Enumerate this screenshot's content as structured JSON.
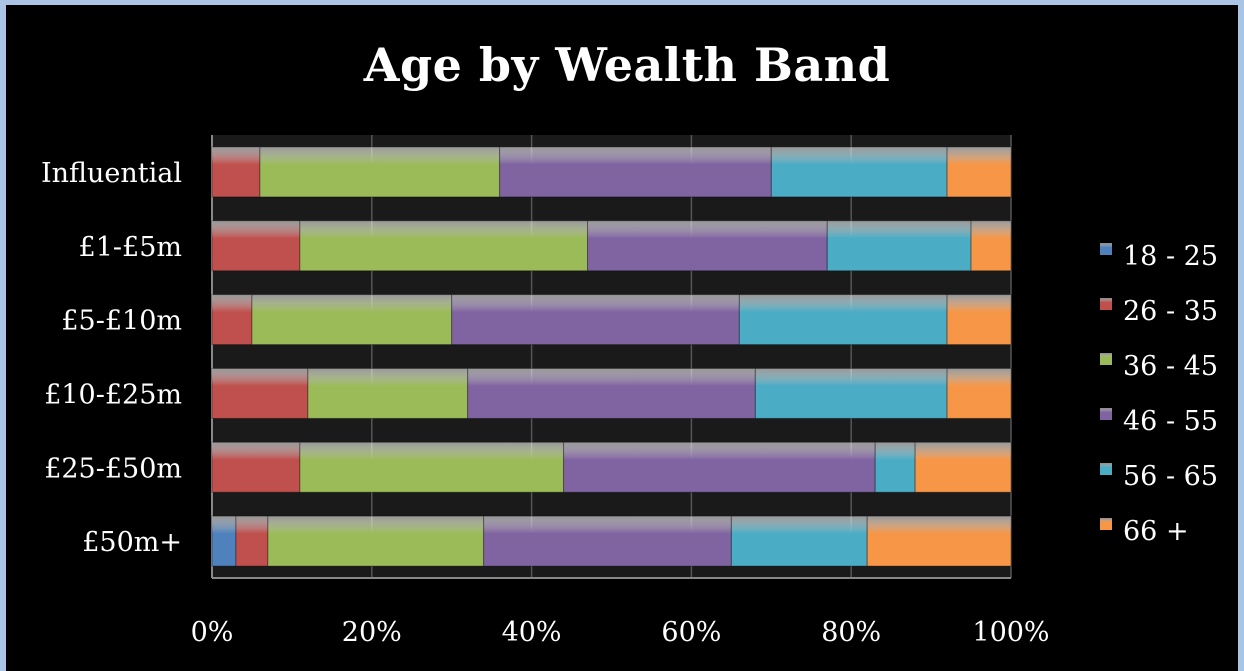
{
  "chart_data": {
    "type": "bar",
    "orientation": "horizontal",
    "stacked": "percent",
    "title": "Age by Wealth Band",
    "categories": [
      "Influential",
      "£1-£5m",
      "£5-£10m",
      "£10-£25m",
      "£25-£50m",
      "£50m+"
    ],
    "series": [
      {
        "name": "18 - 25",
        "color": "#4f81bd",
        "values": [
          0,
          0,
          0,
          0,
          0,
          3
        ]
      },
      {
        "name": "26 - 35",
        "color": "#c0504d",
        "values": [
          6,
          11,
          5,
          12,
          11,
          4
        ]
      },
      {
        "name": "36 - 45",
        "color": "#9bbb59",
        "values": [
          30,
          36,
          25,
          20,
          33,
          27
        ]
      },
      {
        "name": "46 - 55",
        "color": "#8064a2",
        "values": [
          34,
          30,
          36,
          36,
          39,
          31
        ]
      },
      {
        "name": "56 - 65",
        "color": "#4bacc6",
        "values": [
          22,
          18,
          26,
          24,
          5,
          17
        ]
      },
      {
        "name": "66 +",
        "color": "#f79646",
        "values": [
          8,
          5,
          8,
          8,
          12,
          18
        ]
      }
    ],
    "xaxis": {
      "ticks": [
        "0%",
        "20%",
        "40%",
        "60%",
        "80%",
        "100%"
      ],
      "range": [
        0,
        100
      ]
    },
    "grid": true,
    "legend_position": "right"
  }
}
